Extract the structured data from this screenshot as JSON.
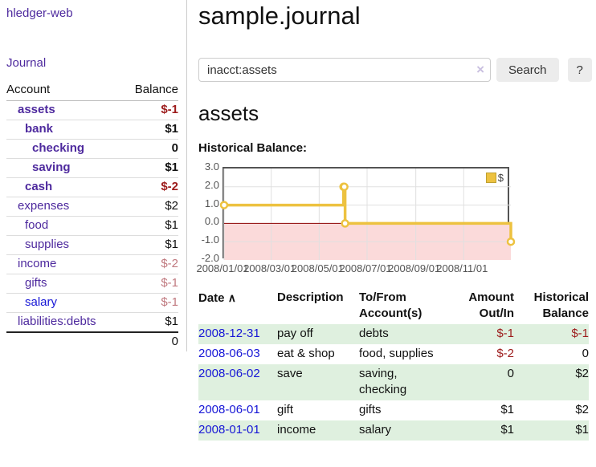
{
  "sidebar": {
    "brand": "hledger-web",
    "journal_link": "Journal",
    "accounts": {
      "col_account": "Account",
      "col_balance": "Balance",
      "rows": [
        {
          "name": "assets",
          "balance": "$-1",
          "depth": 1,
          "bold": true,
          "neg": "strong"
        },
        {
          "name": "bank",
          "balance": "$1",
          "depth": 2,
          "bold": true
        },
        {
          "name": "checking",
          "balance": "0",
          "depth": 3,
          "bold": true
        },
        {
          "name": "saving",
          "balance": "$1",
          "depth": 3,
          "bold": true
        },
        {
          "name": "cash",
          "balance": "$-2",
          "depth": 2,
          "bold": true,
          "neg": "strong"
        },
        {
          "name": "expenses",
          "balance": "$2",
          "depth": 1
        },
        {
          "name": "food",
          "balance": "$1",
          "depth": 2
        },
        {
          "name": "supplies",
          "balance": "$1",
          "depth": 2
        },
        {
          "name": "income",
          "balance": "$-2",
          "depth": 1,
          "neg": "soft"
        },
        {
          "name": "gifts",
          "balance": "$-1",
          "depth": 2,
          "neg": "soft"
        },
        {
          "name": "salary",
          "balance": "$-1",
          "depth": 2,
          "neg": "soft",
          "link": "blue"
        },
        {
          "name": "liabilities:debts",
          "balance": "$1",
          "depth": 1
        }
      ],
      "total": "0"
    }
  },
  "header": {
    "title": "sample.journal"
  },
  "search": {
    "value": "inacct:assets",
    "clear_icon": "×",
    "search_label": "Search",
    "help_label": "?"
  },
  "account_page": {
    "heading": "assets",
    "chart_title": "Historical Balance:"
  },
  "chart_data": {
    "type": "line",
    "title": "Historical Balance",
    "series": [
      {
        "name": "$",
        "color": "#EDC240",
        "step": true,
        "points": [
          [
            "2008-01-01",
            1
          ],
          [
            "2008-06-01",
            2
          ],
          [
            "2008-06-02",
            2
          ],
          [
            "2008-06-03",
            0
          ],
          [
            "2008-12-31",
            -1
          ]
        ]
      }
    ],
    "x_range": [
      "2008-01-01",
      "2008-12-31"
    ],
    "x_ticks": [
      "2008/01/01",
      "2008/03/01",
      "2008/05/01",
      "2008/07/01",
      "2008/09/01",
      "2008/11/01"
    ],
    "y_ticks": [
      "3.0",
      "2.0",
      "1.0",
      "0.0",
      "-1.0",
      "-2.0"
    ],
    "ylim": [
      -2,
      3
    ],
    "grid": true,
    "legend_position": "top-right",
    "negative_region_color": "#fbdada",
    "zero_line_color": "#8b0000"
  },
  "register": {
    "columns": {
      "date": "Date",
      "sort_icon": "∧",
      "description": "Description",
      "tofrom": "To/From Account(s)",
      "amount": "Amount Out/In",
      "balance": "Historical Balance"
    },
    "rows": [
      {
        "date": "2008-12-31",
        "description": "pay off",
        "accounts": "debts",
        "amount": "$-1",
        "balance": "$-1"
      },
      {
        "date": "2008-06-03",
        "description": "eat & shop",
        "accounts": "food, supplies",
        "amount": "$-2",
        "balance": "0"
      },
      {
        "date": "2008-06-02",
        "description": "save",
        "accounts": "saving,\nchecking",
        "amount": "0",
        "balance": "$2"
      },
      {
        "date": "2008-06-01",
        "description": "gift",
        "accounts": "gifts",
        "amount": "$1",
        "balance": "$2"
      },
      {
        "date": "2008-01-01",
        "description": "income",
        "accounts": "salary",
        "amount": "$1",
        "balance": "$1"
      }
    ]
  },
  "colors": {
    "link_purple": "#4e2a9e",
    "link_blue": "#1717d6",
    "negative_strong": "#9d1c1c",
    "negative_soft": "#c0797f",
    "row_stripe_green": "#dff0df",
    "series_yellow": "#EDC240"
  }
}
